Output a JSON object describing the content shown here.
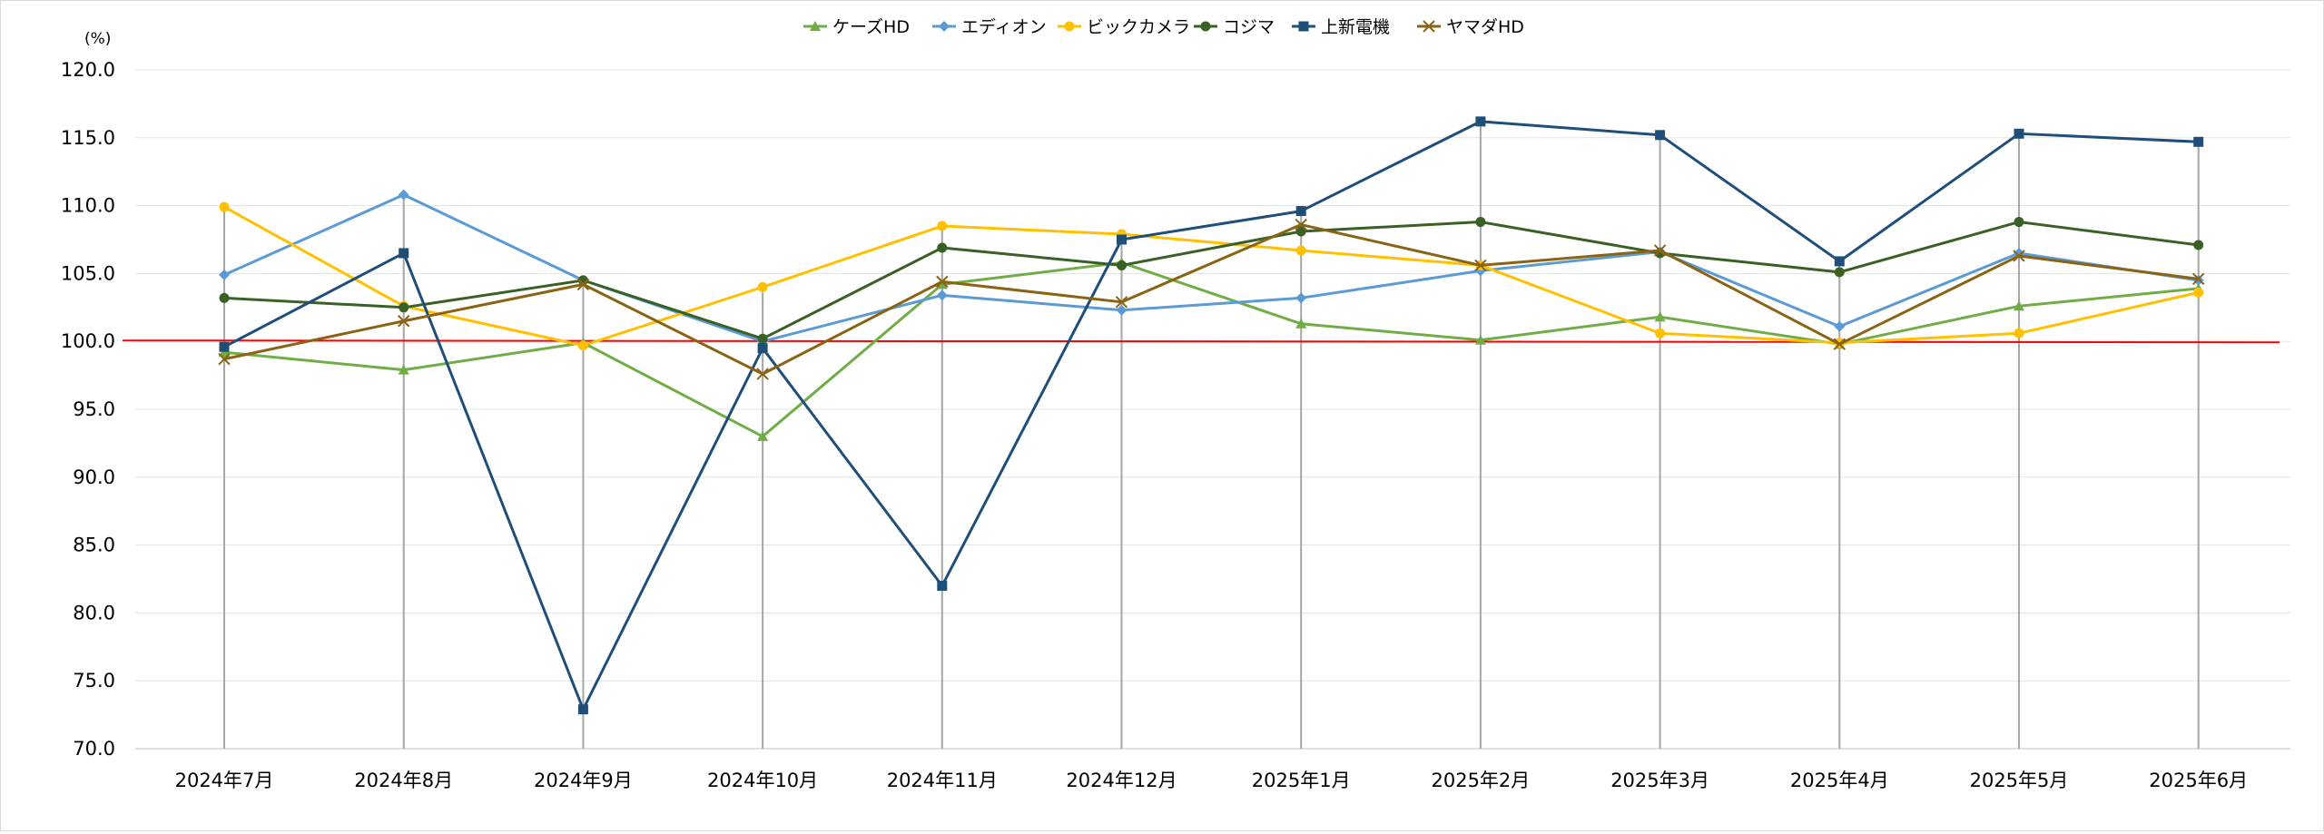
{
  "chart_data": {
    "type": "line",
    "title": "",
    "unit_label": "(%)",
    "ylim": [
      70,
      120
    ],
    "ytick_step": 5,
    "categories": [
      "2024年7月",
      "2024年8月",
      "2024年9月",
      "2024年10月",
      "2024年11月",
      "2024年12月",
      "2025年1月",
      "2025年2月",
      "2025年3月",
      "2025年4月",
      "2025年5月",
      "2025年6月"
    ],
    "reference_line": {
      "value": 100,
      "color": "#ff0000"
    },
    "series": [
      {
        "name": "ケーズHD",
        "color": "#70ad47",
        "marker": "triangle",
        "values": [
          99.2,
          97.9,
          99.9,
          93.0,
          104.2,
          105.8,
          101.3,
          100.1,
          101.8,
          99.8,
          102.6,
          103.9
        ]
      },
      {
        "name": "エディオン",
        "color": "#5b9bd5",
        "marker": "diamond",
        "values": [
          104.9,
          110.8,
          104.5,
          100.0,
          103.4,
          102.3,
          103.2,
          105.2,
          106.6,
          101.1,
          106.5,
          104.5
        ]
      },
      {
        "name": "ビックカメラ",
        "color": "#ffc000",
        "marker": "circle",
        "values": [
          109.9,
          102.6,
          99.7,
          104.0,
          108.5,
          107.9,
          106.7,
          105.6,
          100.6,
          99.9,
          100.6,
          103.6
        ]
      },
      {
        "name": "コジマ",
        "color": "#3a6125",
        "marker": "circle",
        "values": [
          103.2,
          102.5,
          104.5,
          100.2,
          106.9,
          105.6,
          108.1,
          108.8,
          106.5,
          105.1,
          108.8,
          107.1
        ]
      },
      {
        "name": "上新電機",
        "color": "#1f4e79",
        "marker": "square",
        "values": [
          99.6,
          106.5,
          72.9,
          99.5,
          82.0,
          107.5,
          109.6,
          116.2,
          115.2,
          105.9,
          115.3,
          114.7
        ]
      },
      {
        "name": "ヤマダHD",
        "color": "#8a6414",
        "marker": "x",
        "values": [
          98.7,
          101.5,
          104.2,
          97.6,
          104.4,
          102.9,
          108.6,
          105.6,
          106.7,
          99.8,
          106.3,
          104.6
        ]
      }
    ]
  }
}
